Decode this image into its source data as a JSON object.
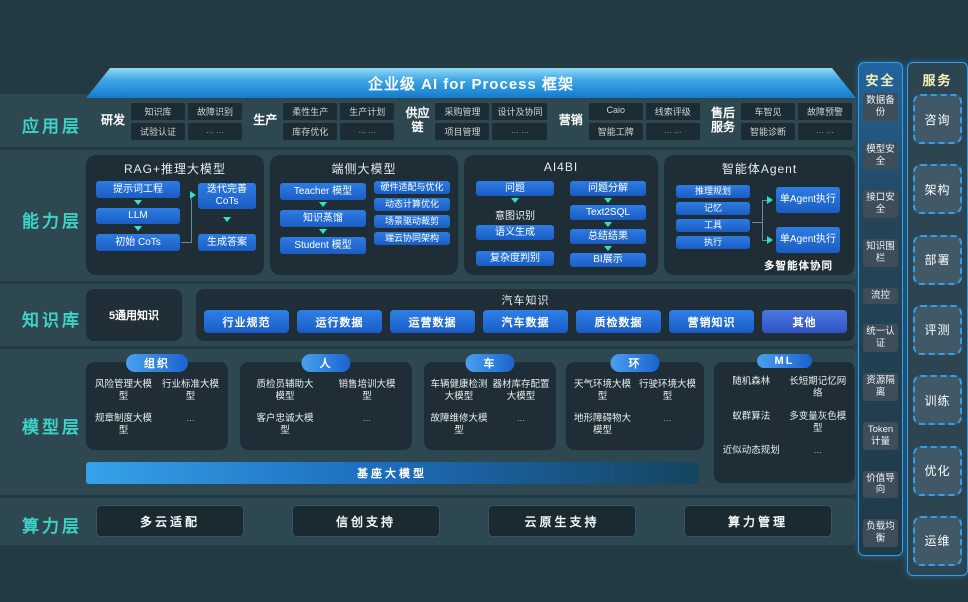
{
  "banner": {
    "title": "企业级 AI for Process 框架"
  },
  "left_labels": {
    "app": "应用层",
    "capability": "能力层",
    "knowledge": "知识库",
    "model": "模型层",
    "compute": "算力层"
  },
  "colors": {
    "accent_blue": "#1e7fe0",
    "arrow_teal": "#2ee4c6",
    "label_cyan": "#3ed2c6",
    "panel_header_yellow": "#f7f0bd",
    "banner_blue": "#3fa6e6"
  },
  "app_layer": {
    "sections": [
      {
        "label": "研发",
        "cells": [
          "知识库",
          "故障识别",
          "试验认证",
          "... ..."
        ]
      },
      {
        "label": "生产",
        "cells": [
          "柔性生产",
          "生产计划",
          "库存优化",
          "... ..."
        ]
      },
      {
        "label": "供应链",
        "cells": [
          "采购管理",
          "设计及协同",
          "项目管理",
          "... ..."
        ]
      },
      {
        "label": "营销",
        "cells": [
          "Caio",
          "线索评级",
          "智能工牌",
          "... ..."
        ]
      },
      {
        "label": "售后服务",
        "cells": [
          "车智见",
          "故障预警",
          "智能诊断",
          "... ..."
        ]
      }
    ]
  },
  "capability_layer": {
    "rag": {
      "title": "RAG+推理大模型",
      "nodes": {
        "prompt": "提示词工程",
        "llm": "LLM",
        "init_cots": "初始 CoTs",
        "iter_cots": "迭代完善CoTs",
        "answer": "生成答案"
      }
    },
    "edge": {
      "title": "端侧大模型",
      "flow": {
        "teacher": "Teacher 模型",
        "distill": "知识蒸馏",
        "student": "Student 模型"
      },
      "stack": [
        "硬件适配与优化",
        "动态计算优化",
        "场景驱动裁剪",
        "端云协同架构"
      ]
    },
    "ai4bi": {
      "title": "AI4BI",
      "left": [
        "问题",
        "意图识别",
        "语义生成",
        "复杂度判别"
      ],
      "right": [
        "问题分解",
        "Text2SQL",
        "总结结果",
        "BI展示"
      ]
    },
    "agent": {
      "title": "智能体Agent",
      "left": [
        "推理规划",
        "记忆",
        "工具",
        "执行"
      ],
      "right": [
        "单Agent执行",
        "单Agent执行"
      ],
      "caption": "多智能体协同"
    }
  },
  "knowledge_layer": {
    "general": "5通用知识",
    "auto_title": "汽车知识",
    "pills": [
      "行业规范",
      "运行数据",
      "运营数据",
      "汽车数据",
      "质检数据",
      "营销知识",
      "其他"
    ]
  },
  "model_layer": {
    "groups": [
      {
        "pill": "组织",
        "items": [
          "风险管理大模型",
          "行业标准大模型",
          "规章制度大模型",
          "..."
        ]
      },
      {
        "pill": "人",
        "items": [
          "质检员辅助大模型",
          "销售培训大模型",
          "客户忠诚大模型",
          "..."
        ]
      },
      {
        "pill": "车",
        "items": [
          "车辆健康检测大模型",
          "器材库存配置大模型",
          "故障维修大模型",
          "..."
        ]
      },
      {
        "pill": "环",
        "items": [
          "天气环境大模型",
          "行驶环境大模型",
          "地形障碍物大模型",
          "..."
        ]
      },
      {
        "pill": "ML",
        "items": [
          "随机森林",
          "长短期记忆网络",
          "蚁群算法",
          "多变量灰色模型",
          "近似动态规划",
          "..."
        ]
      }
    ],
    "base_model": "基座大模型"
  },
  "compute_layer": {
    "items": [
      "多云适配",
      "信创支持",
      "云原生支持",
      "算力管理"
    ]
  },
  "security_panel": {
    "title": "安全",
    "items": [
      "数据备份",
      "模型安全",
      "接口安全",
      "知识围栏",
      "流控",
      "统一认证",
      "资源隔离",
      "Token计量",
      "价值导向",
      "负载均衡"
    ]
  },
  "service_panel": {
    "title": "服务",
    "items": [
      "咨询",
      "架构",
      "部署",
      "评测",
      "训练",
      "优化",
      "运维"
    ]
  }
}
